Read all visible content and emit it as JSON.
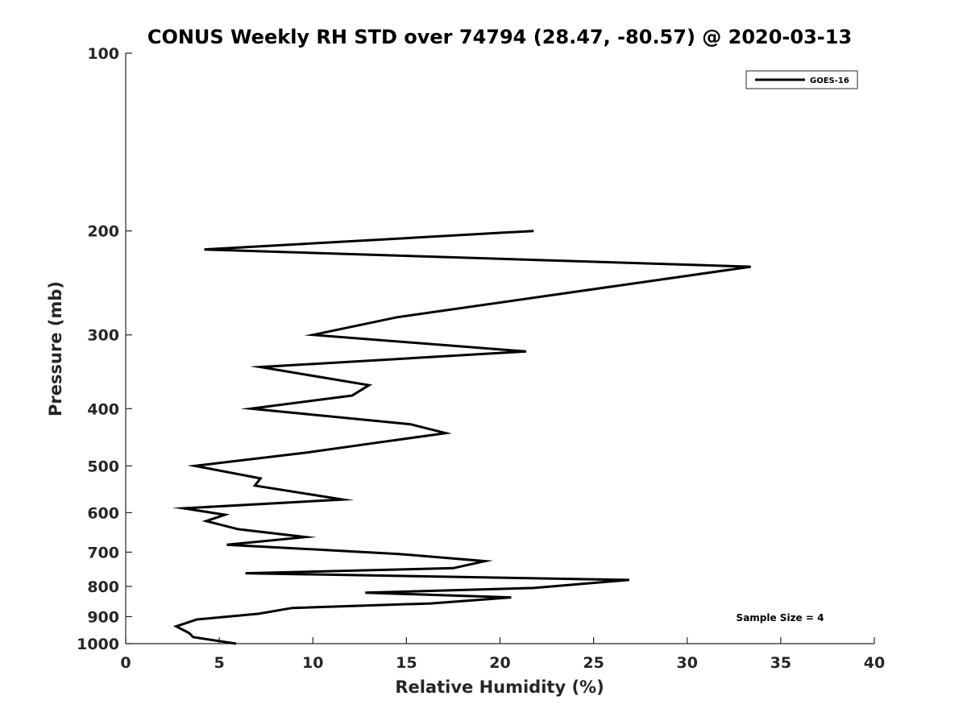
{
  "chart_data": {
    "type": "line",
    "title": "CONUS Weekly RH STD over 74794 (28.47, -80.57) @ 2020-03-13",
    "xlabel": "Relative Humidity (%)",
    "ylabel": "Pressure (mb)",
    "xlim": [
      0,
      40
    ],
    "ylim": [
      100,
      1000
    ],
    "yscale": "log",
    "y_reversed": true,
    "grid": false,
    "legend_position": "top-right",
    "x_ticks": [
      0,
      5,
      10,
      15,
      20,
      25,
      30,
      35,
      40
    ],
    "x_tick_labels": [
      "0",
      "5",
      "10",
      "15",
      "20",
      "25",
      "30",
      "35",
      "40"
    ],
    "y_ticks": [
      100,
      200,
      300,
      400,
      500,
      600,
      700,
      800,
      900,
      1000
    ],
    "y_tick_labels": [
      "100",
      "200",
      "300",
      "400",
      "500",
      "600",
      "700",
      "800",
      "900",
      "1000"
    ],
    "series": [
      {
        "name": "GOES-16",
        "color": "#000000",
        "points": [
          [
            21.8,
            200
          ],
          [
            4.2,
            215
          ],
          [
            33.4,
            230
          ],
          [
            14.5,
            280
          ],
          [
            10.0,
            300
          ],
          [
            21.4,
            320
          ],
          [
            7.2,
            340
          ],
          [
            13.0,
            365
          ],
          [
            12.1,
            380
          ],
          [
            6.7,
            400
          ],
          [
            15.2,
            425
          ],
          [
            17.1,
            440
          ],
          [
            13.8,
            455
          ],
          [
            9.6,
            475
          ],
          [
            3.7,
            500
          ],
          [
            7.2,
            525
          ],
          [
            6.9,
            540
          ],
          [
            11.6,
            570
          ],
          [
            3.1,
            590
          ],
          [
            5.3,
            605
          ],
          [
            4.3,
            620
          ],
          [
            6.0,
            640
          ],
          [
            9.6,
            660
          ],
          [
            5.4,
            680
          ],
          [
            14.6,
            705
          ],
          [
            19.2,
            725
          ],
          [
            17.5,
            745
          ],
          [
            6.4,
            760
          ],
          [
            26.9,
            780
          ],
          [
            21.8,
            805
          ],
          [
            12.8,
            820
          ],
          [
            20.6,
            835
          ],
          [
            16.3,
            855
          ],
          [
            8.9,
            870
          ],
          [
            7.1,
            890
          ],
          [
            3.8,
            910
          ],
          [
            2.7,
            935
          ],
          [
            3.4,
            960
          ],
          [
            3.6,
            975
          ],
          [
            5.9,
            1000
          ]
        ]
      }
    ],
    "annotations": [
      "Sample Size = 4"
    ]
  }
}
